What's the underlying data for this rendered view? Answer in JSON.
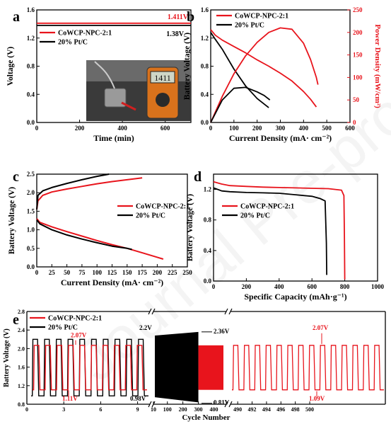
{
  "watermark": "Journal Pre-proofs",
  "chart_data": [
    {
      "id": "a",
      "type": "line",
      "panel_label": "a",
      "xlabel": "Time (min)",
      "ylabel": "Voltage (V)",
      "xlim": [
        0,
        720
      ],
      "ylim": [
        0.0,
        1.6
      ],
      "xticks": [
        0,
        200,
        400,
        600
      ],
      "yticks": [
        0.0,
        0.4,
        0.8,
        1.2,
        1.6
      ],
      "legend": "top-left",
      "grid": false,
      "series": [
        {
          "name": "CoWCP-NPC-2:1",
          "color": "#e8141c",
          "x": [
            0,
            720
          ],
          "y": [
            1.411,
            1.411
          ]
        },
        {
          "name": "20% Pt/C",
          "color": "#000000",
          "x": [
            0,
            720
          ],
          "y": [
            1.38,
            1.38
          ]
        }
      ],
      "annotations": [
        {
          "text": "1.411V",
          "x": 695,
          "y": 1.5,
          "color": "#e8141c"
        },
        {
          "text": "1.38V",
          "x": 695,
          "y": 1.26,
          "color": "#000000"
        }
      ],
      "inset": {
        "meter_reading": "1411"
      }
    },
    {
      "id": "b",
      "type": "line",
      "panel_label": "b",
      "xlabel": "Current Density (mA· cm⁻²)",
      "ylabel": "Battery Voltage (V)",
      "y2label": "Power Density (mW/cm²)",
      "xlim": [
        0,
        600
      ],
      "ylim": [
        0.0,
        1.6
      ],
      "y2lim": [
        0,
        250
      ],
      "xticks": [
        0,
        100,
        200,
        300,
        400,
        500,
        600
      ],
      "yticks": [
        0.0,
        0.4,
        0.8,
        1.2,
        1.6
      ],
      "y2ticks": [
        0,
        50,
        100,
        150,
        200,
        250
      ],
      "legend": "top-left",
      "grid": false,
      "series": [
        {
          "name": "CoWCP-NPC-2:1",
          "color": "#e8141c",
          "axis": "left",
          "x": [
            0,
            20,
            50,
            100,
            150,
            200,
            250,
            300,
            350,
            400,
            430,
            455
          ],
          "y": [
            1.32,
            1.24,
            1.17,
            1.08,
            0.99,
            0.89,
            0.8,
            0.7,
            0.59,
            0.44,
            0.33,
            0.22
          ]
        },
        {
          "name": "20% Pt/C",
          "color": "#000000",
          "axis": "left",
          "x": [
            0,
            20,
            50,
            100,
            150,
            200,
            250
          ],
          "y": [
            1.28,
            1.18,
            1.04,
            0.76,
            0.52,
            0.34,
            0.21
          ]
        },
        {
          "name": "CoWCP-NPC-2:1",
          "color": "#e8141c",
          "axis": "right",
          "x": [
            0,
            50,
            100,
            150,
            200,
            250,
            300,
            350,
            400,
            430,
            455,
            462
          ],
          "y": [
            0,
            58,
            108,
            148,
            178,
            200,
            210,
            207,
            176,
            140,
            100,
            84
          ]
        },
        {
          "name": "20% Pt/C",
          "color": "#000000",
          "axis": "right",
          "x": [
            0,
            50,
            100,
            150,
            200,
            230,
            255
          ],
          "y": [
            0,
            50,
            76,
            78,
            68,
            60,
            50
          ]
        }
      ]
    },
    {
      "id": "c",
      "type": "line",
      "panel_label": "c",
      "xlabel": "Current Density (mA· cm⁻²)",
      "ylabel": "Battery Voltage (V)",
      "xlim": [
        0,
        250
      ],
      "ylim": [
        0.0,
        2.5
      ],
      "xticks": [
        0,
        25,
        50,
        75,
        100,
        125,
        150,
        175,
        200,
        225,
        250
      ],
      "yticks": [
        0.0,
        0.5,
        1.0,
        1.5,
        2.0,
        2.5
      ],
      "legend": "middle-right",
      "grid": false,
      "series": [
        {
          "name": "CoWCP-NPC-2:1",
          "color": "#e8141c",
          "x": [
            0,
            2,
            10,
            25,
            50,
            75,
            100,
            125,
            150,
            175
          ],
          "y": [
            1.55,
            1.78,
            1.93,
            2.02,
            2.1,
            2.17,
            2.24,
            2.3,
            2.35,
            2.4
          ]
        },
        {
          "name": "CoWCP-NPC-2:1",
          "color": "#e8141c",
          "x": [
            0,
            5,
            25,
            50,
            75,
            100,
            125,
            150,
            175,
            200,
            210
          ],
          "y": [
            1.3,
            1.2,
            1.08,
            0.95,
            0.83,
            0.71,
            0.6,
            0.5,
            0.38,
            0.26,
            0.21
          ]
        },
        {
          "name": "20% Pt/C",
          "color": "#000000",
          "x": [
            0,
            2,
            10,
            25,
            50,
            75,
            100,
            120
          ],
          "y": [
            1.55,
            1.93,
            2.05,
            2.14,
            2.25,
            2.35,
            2.44,
            2.5
          ]
        },
        {
          "name": "20% Pt/C",
          "color": "#000000",
          "x": [
            0,
            5,
            25,
            50,
            75,
            100,
            125,
            150,
            158
          ],
          "y": [
            1.27,
            1.16,
            1.0,
            0.86,
            0.75,
            0.65,
            0.56,
            0.5,
            0.47
          ]
        }
      ]
    },
    {
      "id": "d",
      "type": "line",
      "panel_label": "d",
      "xlabel": "Specific Capacity (mAh·g⁻¹)",
      "ylabel": "Battery Voltage (V)",
      "xlim": [
        0,
        1000
      ],
      "ylim": [
        0.0,
        1.4
      ],
      "xticks": [
        0,
        200,
        400,
        600,
        800,
        1000
      ],
      "yticks": [
        0.0,
        0.4,
        0.8,
        1.2
      ],
      "legend": "middle-left",
      "grid": false,
      "series": [
        {
          "name": "CoWCP-NPC-2:1",
          "color": "#e8141c",
          "x": [
            0,
            50,
            100,
            200,
            300,
            400,
            500,
            600,
            700,
            780,
            795,
            798,
            800
          ],
          "y": [
            1.3,
            1.27,
            1.25,
            1.24,
            1.23,
            1.225,
            1.22,
            1.215,
            1.21,
            1.19,
            1.12,
            0.6,
            0.02
          ]
        },
        {
          "name": "20% Pt/C",
          "color": "#000000",
          "x": [
            0,
            50,
            100,
            200,
            300,
            400,
            500,
            600,
            650,
            680,
            688,
            690
          ],
          "y": [
            1.22,
            1.18,
            1.17,
            1.16,
            1.155,
            1.15,
            1.13,
            1.11,
            1.08,
            1.05,
            0.5,
            0.08
          ]
        }
      ]
    },
    {
      "id": "e",
      "type": "line",
      "panel_label": "e",
      "xlabel": "Cycle Number",
      "ylabel": "Battery Voltage (V)",
      "ylim": [
        0.8,
        2.8
      ],
      "yticks": [
        0.8,
        1.2,
        1.6,
        2.0,
        2.4,
        2.8
      ],
      "x_segments": [
        {
          "range": [
            0,
            10
          ],
          "ticks": [
            0,
            3,
            6,
            9
          ]
        },
        {
          "range": [
            10,
            480
          ],
          "ticks": [
            10,
            100,
            200,
            300,
            400
          ]
        },
        {
          "range": [
            489,
            510.5
          ],
          "ticks": [
            490,
            492,
            494,
            496,
            498,
            500
          ]
        }
      ],
      "legend": "top-left",
      "grid": false,
      "series": [
        {
          "name": "CoWCP-NPC-2:1",
          "color": "#e8141c",
          "high": 2.07,
          "low": 1.11
        },
        {
          "name": "20% Pt/C",
          "color": "#000000",
          "high": 2.2,
          "low": 0.98
        }
      ],
      "annotations": [
        {
          "text": "2.07V",
          "color": "#e8141c"
        },
        {
          "text": "1.11V",
          "color": "#e8141c"
        },
        {
          "text": "2.2V",
          "color": "#000000"
        },
        {
          "text": "0.98V",
          "color": "#000000"
        },
        {
          "text": "2.36V",
          "color": "#000000"
        },
        {
          "text": "0.81V",
          "color": "#000000"
        },
        {
          "text": "2.07V",
          "color": "#e8141c"
        },
        {
          "text": "1.09V",
          "color": "#e8141c"
        }
      ]
    }
  ]
}
